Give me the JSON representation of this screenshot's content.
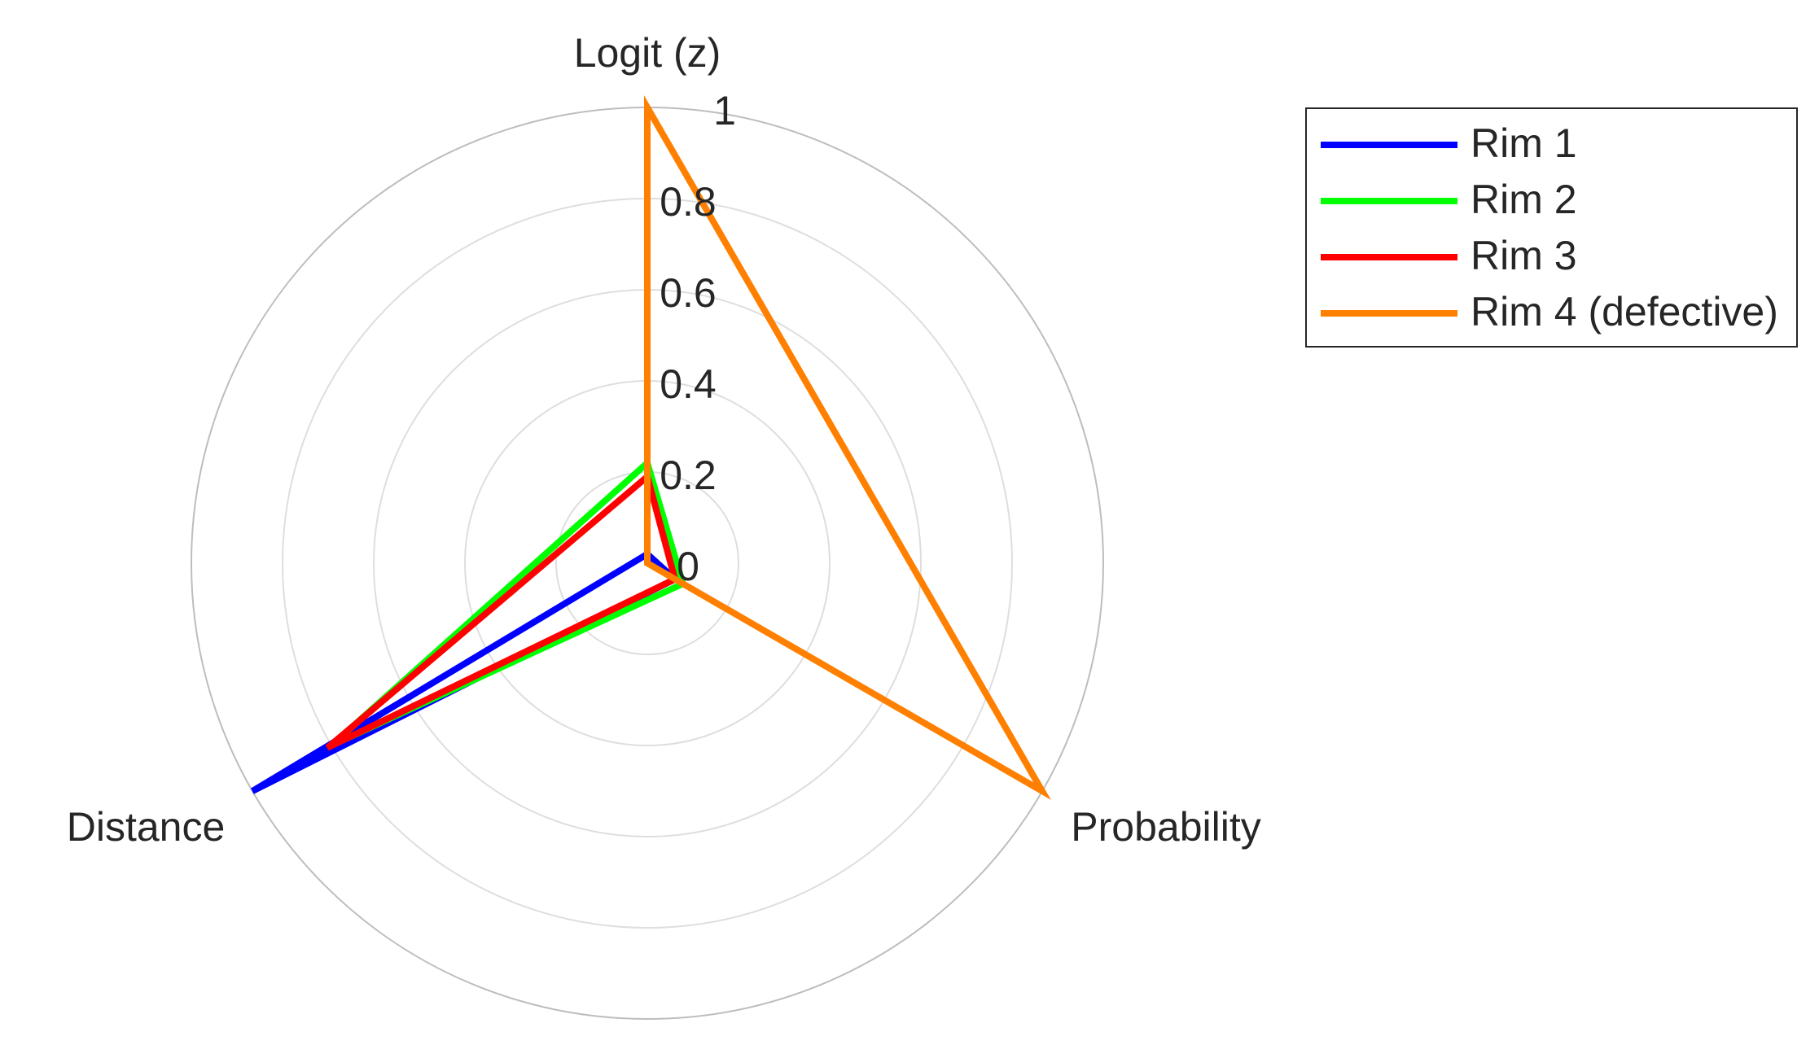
{
  "chart_data": {
    "type": "radar",
    "axes": [
      "Logit (z)",
      "Probability",
      "Distance"
    ],
    "rlim": [
      0,
      1
    ],
    "rticks": [
      0,
      0.2,
      0.4,
      0.6,
      0.8,
      1
    ],
    "legend": "upper right",
    "series": [
      {
        "name": "Rim 1",
        "color": "#0000ff",
        "values": [
          0.02,
          0.07,
          1.0
        ]
      },
      {
        "name": "Rim 2",
        "color": "#00ff00",
        "values": [
          0.22,
          0.09,
          0.8
        ]
      },
      {
        "name": "Rim 3",
        "color": "#ff0000",
        "values": [
          0.19,
          0.07,
          0.81
        ]
      },
      {
        "name": "Rim 4 (defective)",
        "color": "#ff8000",
        "values": [
          1.0,
          1.0,
          0.0
        ]
      }
    ]
  }
}
